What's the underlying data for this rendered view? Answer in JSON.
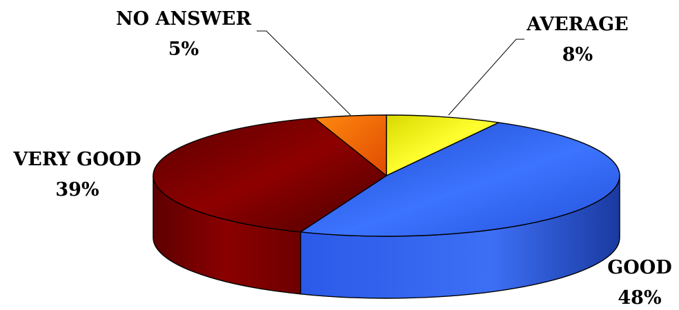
{
  "chart_data": {
    "type": "pie",
    "style": "3d-exploded-none",
    "title": "",
    "slices": [
      {
        "label": "AVERAGE",
        "value": 8,
        "value_label": "8%",
        "color": "#f0f000"
      },
      {
        "label": "GOOD",
        "value": 48,
        "value_label": "48%",
        "color": "#2f5fe8"
      },
      {
        "label": "VERY GOOD",
        "value": 39,
        "value_label": "39%",
        "color": "#8a0000"
      },
      {
        "label": "NO ANSWER",
        "value": 5,
        "value_label": "5%",
        "color": "#ff6a00"
      }
    ],
    "legend": "none"
  }
}
